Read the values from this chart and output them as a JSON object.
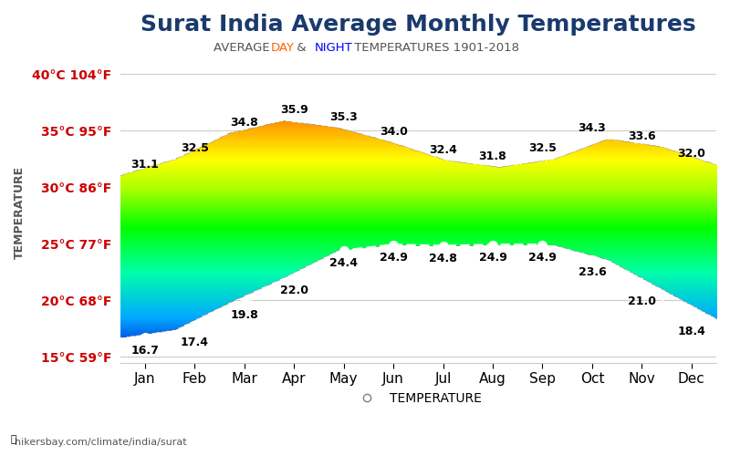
{
  "title": "Surat India Average Monthly Temperatures",
  "subtitle_parts": [
    "AVERAGE ",
    "DAY",
    " & ",
    "NIGHT",
    " TEMPERATURES 1901-2018"
  ],
  "subtitle_colors": [
    "#555555",
    "#ff6600",
    "#555555",
    "#0000ff",
    "#555555"
  ],
  "months": [
    "Jan",
    "Feb",
    "Mar",
    "Apr",
    "May",
    "Jun",
    "Jul",
    "Aug",
    "Sep",
    "Oct",
    "Nov",
    "Dec"
  ],
  "day_temps": [
    31.1,
    32.5,
    34.8,
    35.9,
    35.3,
    34.0,
    32.4,
    31.8,
    32.5,
    34.3,
    33.6,
    32.0
  ],
  "night_temps": [
    16.7,
    17.4,
    19.8,
    22.0,
    24.4,
    24.9,
    24.8,
    24.9,
    24.9,
    23.6,
    21.0,
    18.4
  ],
  "ylim": [
    14.5,
    41.0
  ],
  "yticks": [
    15,
    20,
    25,
    30,
    35,
    40
  ],
  "ytick_labels": [
    "15°C 59°F",
    "20°C 68°F",
    "25°C 77°F",
    "30°C 86°F",
    "35°C 95°F",
    "40°C 104°F"
  ],
  "ylabel": "TEMPERATURE",
  "watermark": "hikersbay.com/climate/india/surat",
  "legend_label": "TEMPERATURE",
  "background_color": "#ffffff",
  "title_color": "#1a3a6e",
  "title_fontsize": 18,
  "axis_label_color": "#cc0000"
}
